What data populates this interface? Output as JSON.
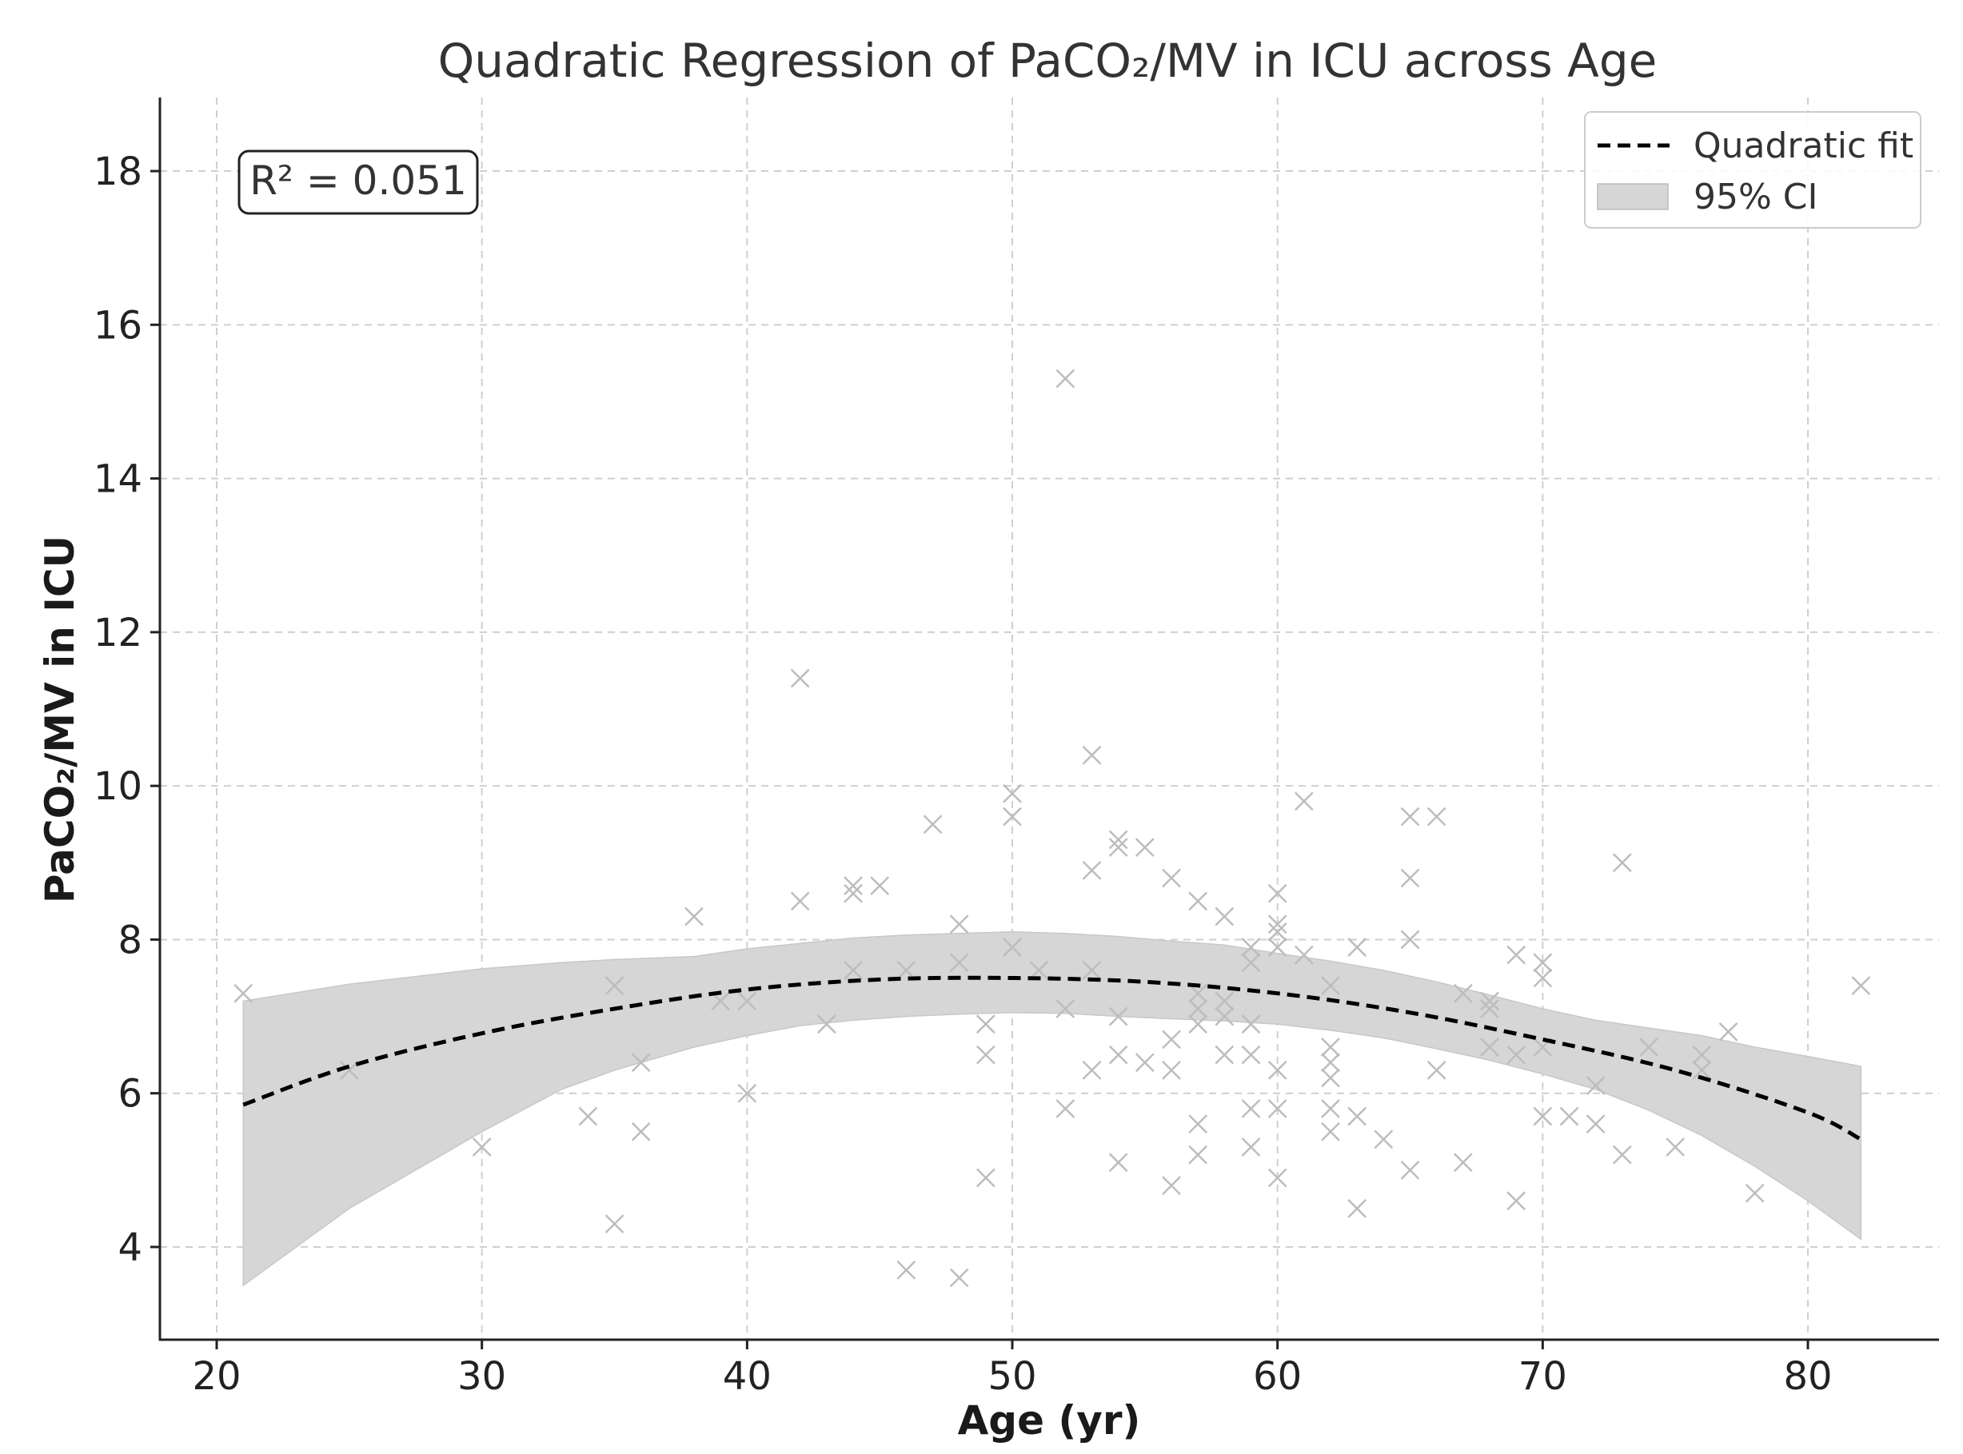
{
  "chart_data": {
    "type": "scatter",
    "title": "Quadratic Regression of PaCO₂/MV in ICU across Age",
    "xlabel": "Age (yr)",
    "ylabel": "PaCO₂/MV in ICU",
    "xlim": [
      18,
      85
    ],
    "ylim": [
      2.8,
      19
    ],
    "xticks": [
      20,
      30,
      40,
      50,
      60,
      70,
      80
    ],
    "yticks": [
      4,
      6,
      8,
      10,
      12,
      14,
      16,
      18
    ],
    "grid": true,
    "legend_position": "top-right",
    "annotation": "R² = 0.051",
    "colors": {
      "points": "#bdbdbd",
      "fit": "#000000",
      "ci": "#d6d6d6",
      "axes": "#222222"
    },
    "legend": [
      {
        "label": "Quadratic fit",
        "style": "dashed-line"
      },
      {
        "label": "95% CI",
        "style": "filled-patch"
      }
    ],
    "scatter": {
      "name": "Observations",
      "x": [
        21,
        25,
        30,
        34,
        35,
        35,
        36,
        36,
        38,
        39,
        40,
        40,
        42,
        42,
        43,
        44,
        44,
        44,
        45,
        46,
        46,
        47,
        48,
        48,
        48,
        49,
        49,
        49,
        50,
        50,
        50,
        51,
        52,
        52,
        52,
        53,
        53,
        53,
        53,
        54,
        54,
        54,
        54,
        54,
        55,
        55,
        56,
        56,
        56,
        56,
        57,
        57,
        57,
        57,
        57,
        57,
        58,
        58,
        58,
        58,
        59,
        59,
        59,
        59,
        59,
        59,
        60,
        60,
        60,
        60,
        60,
        60,
        60,
        61,
        61,
        62,
        62,
        62,
        62,
        62,
        62,
        63,
        63,
        63,
        64,
        65,
        65,
        65,
        65,
        66,
        66,
        67,
        67,
        68,
        68,
        68,
        69,
        69,
        69,
        70,
        70,
        70,
        70,
        71,
        72,
        72,
        73,
        73,
        74,
        75,
        76,
        76,
        77,
        78,
        82
      ],
      "y": [
        7.3,
        6.3,
        5.3,
        5.7,
        7.4,
        4.3,
        6.4,
        5.5,
        8.3,
        7.2,
        7.2,
        6.0,
        11.4,
        8.5,
        6.9,
        8.7,
        8.6,
        7.6,
        8.7,
        7.6,
        3.7,
        9.5,
        8.2,
        7.7,
        3.6,
        6.9,
        6.5,
        4.9,
        9.9,
        9.6,
        7.9,
        7.6,
        15.3,
        7.1,
        5.8,
        10.4,
        8.9,
        7.6,
        6.3,
        5.1,
        9.3,
        9.2,
        7.0,
        6.5,
        6.4,
        9.2,
        6.3,
        8.8,
        6.7,
        4.8,
        8.5,
        7.3,
        6.9,
        5.6,
        5.2,
        7.1,
        8.3,
        7.2,
        7.0,
        6.5,
        7.9,
        7.7,
        6.9,
        6.5,
        5.8,
        5.3,
        8.6,
        8.2,
        8.1,
        7.9,
        6.3,
        5.8,
        4.9,
        9.8,
        7.8,
        7.4,
        6.6,
        6.4,
        6.2,
        5.8,
        5.5,
        7.9,
        5.7,
        4.5,
        5.4,
        9.6,
        8.8,
        8.0,
        5.0,
        9.6,
        6.3,
        7.3,
        5.1,
        7.2,
        7.1,
        6.6,
        7.8,
        6.5,
        4.6,
        7.7,
        7.5,
        6.6,
        5.7,
        5.7,
        6.1,
        5.6,
        9.0,
        5.2,
        6.6,
        5.3,
        6.5,
        6.3,
        6.8,
        4.7,
        7.4
      ]
    },
    "fit": {
      "name": "Quadratic fit",
      "x": [
        21,
        25,
        30,
        35,
        40,
        45,
        50,
        55,
        60,
        65,
        70,
        75,
        80,
        82
      ],
      "y": [
        5.85,
        6.35,
        6.78,
        7.1,
        7.35,
        7.48,
        7.5,
        7.45,
        7.3,
        7.05,
        6.7,
        6.3,
        5.75,
        5.4
      ]
    },
    "ci": {
      "name": "95% CI",
      "x": [
        21,
        25,
        30,
        33,
        35,
        38,
        40,
        42,
        44,
        46,
        48,
        50,
        52,
        54,
        56,
        58,
        60,
        62,
        64,
        66,
        68,
        70,
        72,
        74,
        76,
        78,
        80,
        82
      ],
      "upper": [
        7.2,
        7.42,
        7.62,
        7.7,
        7.74,
        7.78,
        7.88,
        7.95,
        8.02,
        8.06,
        8.08,
        8.1,
        8.08,
        8.04,
        7.98,
        7.93,
        7.82,
        7.72,
        7.6,
        7.45,
        7.28,
        7.1,
        6.95,
        6.85,
        6.75,
        6.6,
        6.48,
        6.35
      ],
      "lower": [
        3.5,
        4.5,
        5.5,
        6.05,
        6.3,
        6.6,
        6.75,
        6.88,
        6.95,
        7.0,
        7.03,
        7.05,
        7.04,
        7.0,
        6.97,
        6.94,
        6.9,
        6.82,
        6.72,
        6.58,
        6.43,
        6.25,
        6.05,
        5.78,
        5.45,
        5.05,
        4.6,
        4.1
      ]
    }
  }
}
